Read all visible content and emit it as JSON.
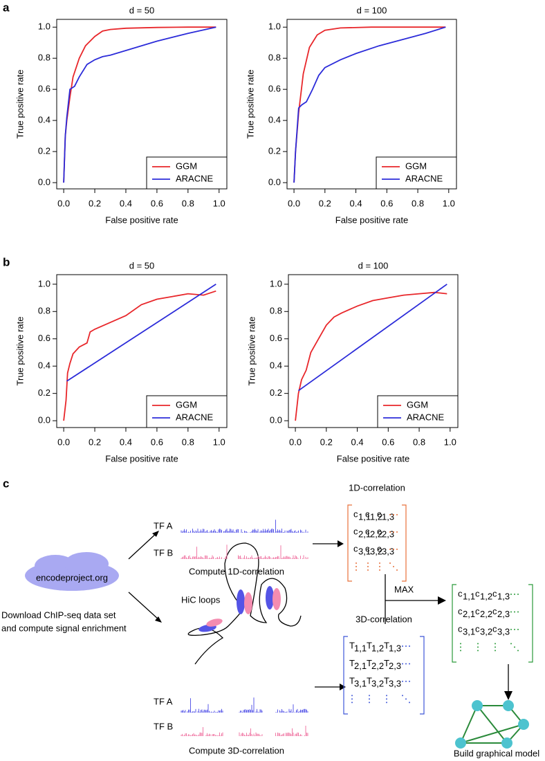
{
  "panel_labels": [
    "a",
    "b",
    "c"
  ],
  "chart_data": [
    {
      "type": "line",
      "title": "d = 50",
      "xlabel": "False positive rate",
      "ylabel": "True positive rate",
      "xlim": [
        -0.045,
        1.05
      ],
      "ylim": [
        -0.04,
        1.05
      ],
      "xticks": [
        {
          "value": 0,
          "label": "0.0"
        },
        {
          "value": 0.2,
          "label": "0.2"
        },
        {
          "value": 0.4,
          "label": "0.4"
        },
        {
          "value": 0.6,
          "label": "0.6"
        },
        {
          "value": 0.8,
          "label": "0.8"
        },
        {
          "value": 1,
          "label": "1.0"
        }
      ],
      "yticks": [
        {
          "value": 0,
          "label": "0.0"
        },
        {
          "value": 0.2,
          "label": "0.2"
        },
        {
          "value": 0.4,
          "label": "0.4"
        },
        {
          "value": 0.6,
          "label": "0.6"
        },
        {
          "value": 0.8,
          "label": "0.8"
        },
        {
          "value": 1,
          "label": "1.0"
        }
      ],
      "legend": "bottomright",
      "series": [
        {
          "name": "GGM",
          "color": "#e8262a",
          "x": [
            0,
            0.01,
            0.02,
            0.04,
            0.06,
            0.1,
            0.14,
            0.2,
            0.25,
            0.3,
            0.4,
            0.6,
            0.8,
            0.98
          ],
          "values": [
            0,
            0.3,
            0.4,
            0.55,
            0.68,
            0.8,
            0.88,
            0.94,
            0.975,
            0.985,
            0.993,
            0.998,
            1,
            1
          ]
        },
        {
          "name": "ARACNE",
          "color": "#2b2bd9",
          "x": [
            0,
            0.01,
            0.02,
            0.04,
            0.07,
            0.1,
            0.15,
            0.2,
            0.25,
            0.3,
            0.4,
            0.6,
            0.8,
            0.98
          ],
          "values": [
            0,
            0.3,
            0.42,
            0.6,
            0.62,
            0.68,
            0.76,
            0.79,
            0.81,
            0.82,
            0.85,
            0.91,
            0.96,
            1
          ]
        }
      ]
    },
    {
      "type": "line",
      "title": "d = 100",
      "xlabel": "False positive rate",
      "ylabel": "True positive rate",
      "xlim": [
        -0.045,
        1.05
      ],
      "ylim": [
        -0.04,
        1.05
      ],
      "xticks": [
        {
          "value": 0,
          "label": "0.0"
        },
        {
          "value": 0.2,
          "label": "0.2"
        },
        {
          "value": 0.4,
          "label": "0.4"
        },
        {
          "value": 0.6,
          "label": "0.6"
        },
        {
          "value": 0.8,
          "label": "0.8"
        },
        {
          "value": 1,
          "label": "1.0"
        }
      ],
      "yticks": [
        {
          "value": 0,
          "label": "0.0"
        },
        {
          "value": 0.2,
          "label": "0.2"
        },
        {
          "value": 0.4,
          "label": "0.4"
        },
        {
          "value": 0.6,
          "label": "0.6"
        },
        {
          "value": 0.8,
          "label": "0.8"
        },
        {
          "value": 1,
          "label": "1.0"
        }
      ],
      "legend": "bottomright",
      "series": [
        {
          "name": "GGM",
          "color": "#e8262a",
          "x": [
            0,
            0.01,
            0.03,
            0.06,
            0.1,
            0.15,
            0.2,
            0.3,
            0.5,
            0.98
          ],
          "values": [
            0,
            0.2,
            0.45,
            0.7,
            0.87,
            0.95,
            0.98,
            0.995,
            1,
            1
          ]
        },
        {
          "name": "ARACNE",
          "color": "#2b2bd9",
          "x": [
            0,
            0.01,
            0.03,
            0.05,
            0.08,
            0.12,
            0.16,
            0.2,
            0.3,
            0.4,
            0.55,
            0.7,
            0.85,
            0.98
          ],
          "values": [
            0,
            0.2,
            0.48,
            0.5,
            0.52,
            0.6,
            0.69,
            0.74,
            0.79,
            0.83,
            0.88,
            0.92,
            0.96,
            1
          ]
        }
      ]
    },
    {
      "type": "line",
      "title": "d = 50",
      "xlabel": "False positive rate",
      "ylabel": "True positive rate",
      "xlim": [
        -0.045,
        1.05
      ],
      "ylim": [
        -0.05,
        1.07
      ],
      "xticks": [
        {
          "value": 0,
          "label": "0.0"
        },
        {
          "value": 0.2,
          "label": "0.2"
        },
        {
          "value": 0.4,
          "label": "0.4"
        },
        {
          "value": 0.6,
          "label": "0.6"
        },
        {
          "value": 0.8,
          "label": "0.8"
        },
        {
          "value": 1,
          "label": "1.0"
        }
      ],
      "yticks": [
        {
          "value": 0,
          "label": "0.0"
        },
        {
          "value": 0.2,
          "label": "0.2"
        },
        {
          "value": 0.4,
          "label": "0.4"
        },
        {
          "value": 0.6,
          "label": "0.6"
        },
        {
          "value": 0.8,
          "label": "0.8"
        },
        {
          "value": 1,
          "label": "1.0"
        }
      ],
      "legend": "bottomright",
      "series": [
        {
          "name": "GGM",
          "color": "#e8262a",
          "x": [
            0,
            0.015,
            0.025,
            0.04,
            0.06,
            0.1,
            0.15,
            0.17,
            0.2,
            0.3,
            0.4,
            0.5,
            0.6,
            0.7,
            0.8,
            0.9,
            0.98
          ],
          "values": [
            0,
            0.15,
            0.35,
            0.42,
            0.49,
            0.54,
            0.57,
            0.65,
            0.67,
            0.72,
            0.77,
            0.85,
            0.89,
            0.91,
            0.93,
            0.92,
            0.95
          ]
        },
        {
          "name": "ARACNE",
          "color": "#2b2bd9",
          "x": [
            0.02,
            0.98
          ],
          "values": [
            0.29,
            1
          ]
        }
      ]
    },
    {
      "type": "line",
      "title": "d = 100",
      "xlabel": "False positive rate",
      "ylabel": "True positive rate",
      "xlim": [
        -0.045,
        1.05
      ],
      "ylim": [
        -0.05,
        1.07
      ],
      "xticks": [
        {
          "value": 0,
          "label": "0.0"
        },
        {
          "value": 0.2,
          "label": "0.2"
        },
        {
          "value": 0.4,
          "label": "0.4"
        },
        {
          "value": 0.6,
          "label": "0.6"
        },
        {
          "value": 0.8,
          "label": "0.8"
        },
        {
          "value": 1,
          "label": "1.0"
        }
      ],
      "yticks": [
        {
          "value": 0,
          "label": "0.0"
        },
        {
          "value": 0.2,
          "label": "0.2"
        },
        {
          "value": 0.4,
          "label": "0.4"
        },
        {
          "value": 0.6,
          "label": "0.6"
        },
        {
          "value": 0.8,
          "label": "0.8"
        },
        {
          "value": 1,
          "label": "1.0"
        }
      ],
      "legend": "bottomright",
      "series": [
        {
          "name": "GGM",
          "color": "#e8262a",
          "x": [
            0,
            0.02,
            0.04,
            0.07,
            0.1,
            0.15,
            0.2,
            0.25,
            0.3,
            0.4,
            0.5,
            0.6,
            0.7,
            0.8,
            0.9,
            0.98
          ],
          "values": [
            0,
            0.2,
            0.3,
            0.37,
            0.5,
            0.6,
            0.7,
            0.76,
            0.79,
            0.84,
            0.88,
            0.9,
            0.92,
            0.93,
            0.94,
            0.93
          ]
        },
        {
          "name": "ARACNE",
          "color": "#2b2bd9",
          "x": [
            0.02,
            0.98
          ],
          "values": [
            0.22,
            1
          ]
        }
      ]
    }
  ],
  "diagram": {
    "source": "encodeproject.org",
    "download": [
      "Download ChIP-seq data set",
      "and compute signal enrichment"
    ],
    "tf_a": "TF A",
    "tf_b": "TF B",
    "compute_1d": "Compute 1D-correlation",
    "compute_3d": "Compute 3D-correlation",
    "hic": "HiC loops",
    "max": "MAX",
    "build": "Build graphical model",
    "matrices": [
      {
        "title": "1D-correlation",
        "symbol": "c",
        "indices": [
          [
            "1,1",
            "1,2",
            "1,3"
          ],
          [
            "2,1",
            "2,2",
            "2,3"
          ],
          [
            "3,1",
            "3,2",
            "3,3"
          ]
        ]
      },
      {
        "title": "3D-correlation",
        "symbol": "T",
        "indices": [
          [
            "1,1",
            "1,2",
            "1,3"
          ],
          [
            "2,1",
            "2,2",
            "2,3"
          ],
          [
            "3,1",
            "3,2",
            "3,3"
          ]
        ]
      },
      {
        "symbol": "c",
        "indices": [
          [
            "1,1",
            "1,2",
            "1,3"
          ],
          [
            "2,1",
            "2,2",
            "2,3"
          ],
          [
            "3,1",
            "3,2",
            "3,3"
          ]
        ]
      }
    ]
  }
}
